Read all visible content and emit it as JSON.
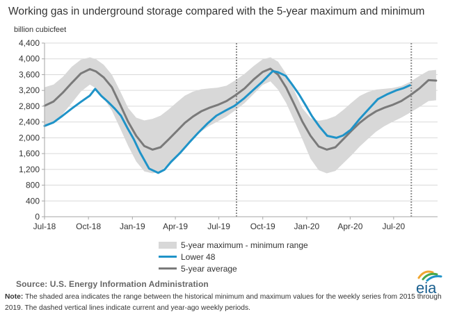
{
  "title": "Working gas in underground storage compared with the 5-year maximum and minimum",
  "unit_label": "billion cubicfeet",
  "legend": {
    "band": "5-year maximum - minimum range",
    "lower48": "Lower 48",
    "average": "5-year average"
  },
  "source": "Source:  U.S. Energy Information Administration",
  "note_label": "Note:",
  "note_text": "The shaded area indicates the range between the historical minimum and maximum values for the weekly series from 2015 through 2019. The dashed vertical lines indicate current and year-ago weekly periods.",
  "logo_text": "eia",
  "colors": {
    "lower48": "#1f93c8",
    "average": "#7a7a7a",
    "band": "#d8d8d8",
    "grid": "#d9d9d9",
    "logo_orange": "#f0a630",
    "logo_green": "#4aa84a",
    "logo_blue": "#1f93c8"
  },
  "chart_data": {
    "type": "line",
    "ylim": [
      0,
      4400
    ],
    "yticks": [
      0,
      400,
      800,
      1200,
      1600,
      2000,
      2400,
      2800,
      3200,
      3600,
      4000,
      4400
    ],
    "ytick_labels": [
      "0",
      "400",
      "800",
      "1,200",
      "1,600",
      "2,000",
      "2,400",
      "2,800",
      "3,200",
      "3,600",
      "4,000",
      "4,400"
    ],
    "xlim": [
      "2018-07-01",
      "2020-10-01"
    ],
    "xticks": [
      "2018-07-01",
      "2018-10-01",
      "2019-01-01",
      "2019-04-01",
      "2019-07-01",
      "2019-10-01",
      "2020-01-01",
      "2020-04-01",
      "2020-07-01"
    ],
    "xtick_labels": [
      "Jul-18",
      "Oct-18",
      "Jan-19",
      "Apr-19",
      "Jul-19",
      "Oct-19",
      "Jan-20",
      "Apr-20",
      "Jul-20"
    ],
    "grid": true,
    "vlines": [
      "2019-08-07",
      "2020-08-07"
    ],
    "series": [
      {
        "name": "Lower 48",
        "x": [
          "2018-07-01",
          "2018-07-20",
          "2018-08-08",
          "2018-08-27",
          "2018-09-15",
          "2018-10-04",
          "2018-10-15",
          "2018-10-28",
          "2018-11-11",
          "2018-11-25",
          "2018-12-08",
          "2018-12-21",
          "2019-01-04",
          "2019-01-17",
          "2019-02-05",
          "2019-02-24",
          "2019-03-09",
          "2019-03-23",
          "2019-04-11",
          "2019-04-30",
          "2019-05-19",
          "2019-06-07",
          "2019-06-26",
          "2019-07-15",
          "2019-08-03",
          "2019-08-22",
          "2019-09-10",
          "2019-09-29",
          "2019-10-12",
          "2019-10-22",
          "2019-11-02",
          "2019-11-18",
          "2019-12-01",
          "2019-12-16",
          "2019-12-30",
          "2020-01-12",
          "2020-01-28",
          "2020-02-13",
          "2020-03-03",
          "2020-03-17",
          "2020-04-02",
          "2020-04-21",
          "2020-05-10",
          "2020-05-29",
          "2020-06-17",
          "2020-07-06",
          "2020-07-22",
          "2020-08-04"
        ],
        "y": [
          2300,
          2390,
          2560,
          2740,
          2910,
          3070,
          3240,
          3060,
          2910,
          2740,
          2560,
          2260,
          1960,
          1630,
          1220,
          1110,
          1190,
          1390,
          1620,
          1880,
          2130,
          2360,
          2560,
          2690,
          2810,
          2990,
          3200,
          3410,
          3570,
          3690,
          3660,
          3570,
          3360,
          3100,
          2820,
          2550,
          2280,
          2050,
          2000,
          2060,
          2200,
          2480,
          2730,
          2980,
          3100,
          3200,
          3260,
          3330
        ]
      },
      {
        "name": "5-year average",
        "x": [
          "2018-07-01",
          "2018-07-20",
          "2018-08-08",
          "2018-08-27",
          "2018-09-15",
          "2018-10-04",
          "2018-10-17",
          "2018-11-02",
          "2018-11-19",
          "2018-12-06",
          "2018-12-23",
          "2019-01-09",
          "2019-01-26",
          "2019-02-12",
          "2019-03-01",
          "2019-03-18",
          "2019-04-04",
          "2019-04-21",
          "2019-05-08",
          "2019-05-25",
          "2019-06-11",
          "2019-06-28",
          "2019-07-17",
          "2019-08-05",
          "2019-08-24",
          "2019-09-12",
          "2019-10-01",
          "2019-10-17",
          "2019-11-02",
          "2019-11-19",
          "2019-12-06",
          "2019-12-23",
          "2020-01-09",
          "2020-01-26",
          "2020-02-12",
          "2020-03-01",
          "2020-03-18",
          "2020-04-04",
          "2020-04-21",
          "2020-05-08",
          "2020-05-25",
          "2020-06-11",
          "2020-06-28",
          "2020-07-17",
          "2020-08-05",
          "2020-08-24",
          "2020-09-12",
          "2020-09-28"
        ],
        "y": [
          2810,
          2920,
          3140,
          3390,
          3630,
          3740,
          3680,
          3530,
          3280,
          2850,
          2410,
          2050,
          1790,
          1700,
          1760,
          1960,
          2170,
          2380,
          2540,
          2670,
          2760,
          2830,
          2930,
          3080,
          3250,
          3480,
          3670,
          3750,
          3600,
          3270,
          2850,
          2410,
          2050,
          1780,
          1700,
          1760,
          1970,
          2180,
          2380,
          2540,
          2670,
          2760,
          2830,
          2930,
          3080,
          3250,
          3460,
          3450
        ]
      },
      {
        "name": "5-year maximum - minimum range",
        "type": "band",
        "x": [
          "2018-07-01",
          "2018-07-20",
          "2018-08-08",
          "2018-08-27",
          "2018-09-15",
          "2018-10-04",
          "2018-10-17",
          "2018-11-02",
          "2018-11-19",
          "2018-12-06",
          "2018-12-23",
          "2019-01-09",
          "2019-01-26",
          "2019-02-12",
          "2019-03-01",
          "2019-03-18",
          "2019-04-04",
          "2019-04-21",
          "2019-05-08",
          "2019-05-25",
          "2019-06-11",
          "2019-06-28",
          "2019-07-17",
          "2019-08-05",
          "2019-08-24",
          "2019-09-12",
          "2019-10-01",
          "2019-10-17",
          "2019-11-02",
          "2019-11-19",
          "2019-12-06",
          "2019-12-23",
          "2020-01-09",
          "2020-01-26",
          "2020-02-12",
          "2020-03-01",
          "2020-03-18",
          "2020-04-04",
          "2020-04-21",
          "2020-05-08",
          "2020-05-25",
          "2020-06-11",
          "2020-06-28",
          "2020-07-17",
          "2020-08-05",
          "2020-08-24",
          "2020-09-12",
          "2020-09-28"
        ],
        "max": [
          3280,
          3350,
          3540,
          3800,
          3980,
          4040,
          3990,
          3850,
          3600,
          3190,
          2760,
          2510,
          2440,
          2480,
          2560,
          2720,
          2900,
          3070,
          3170,
          3230,
          3250,
          3270,
          3320,
          3460,
          3620,
          3820,
          3990,
          4040,
          3930,
          3620,
          3200,
          2750,
          2500,
          2430,
          2470,
          2550,
          2710,
          2890,
          3060,
          3160,
          3220,
          3240,
          3260,
          3310,
          3420,
          3570,
          3700,
          3720
        ],
        "min": [
          2290,
          2380,
          2600,
          2880,
          3170,
          3350,
          3250,
          3000,
          2690,
          2250,
          1800,
          1400,
          1150,
          1100,
          1150,
          1350,
          1550,
          1780,
          1970,
          2160,
          2300,
          2410,
          2540,
          2700,
          2880,
          3110,
          3340,
          3430,
          3220,
          2880,
          2430,
          1960,
          1470,
          1180,
          1100,
          1160,
          1360,
          1560,
          1780,
          1970,
          2150,
          2290,
          2400,
          2510,
          2640,
          2780,
          2930,
          2950
        ]
      }
    ]
  }
}
